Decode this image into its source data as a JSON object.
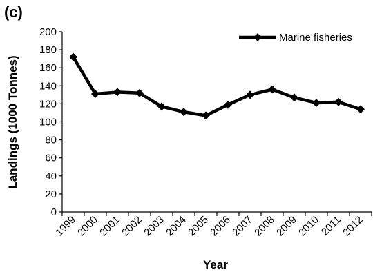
{
  "panel_label": "(c)",
  "chart_data": {
    "type": "line",
    "title": "",
    "xlabel": "Year",
    "ylabel": "Landings (1000 Tonnes)",
    "categories": [
      "1999",
      "2000",
      "2001",
      "2002",
      "2003",
      "2004",
      "2005",
      "2006",
      "2007",
      "2008",
      "2009",
      "2010",
      "2011",
      "2012"
    ],
    "series": [
      {
        "name": "Marine fisheries",
        "values": [
          172,
          131,
          133,
          132,
          117,
          111,
          107,
          119,
          130,
          136,
          127,
          121,
          122,
          114
        ]
      }
    ],
    "ylim": [
      0,
      200
    ],
    "yticks": [
      0,
      20,
      40,
      60,
      80,
      100,
      120,
      140,
      160,
      180,
      200
    ],
    "grid": false,
    "legend_position": "top-right",
    "marker": "diamond",
    "line_color": "#000000"
  }
}
